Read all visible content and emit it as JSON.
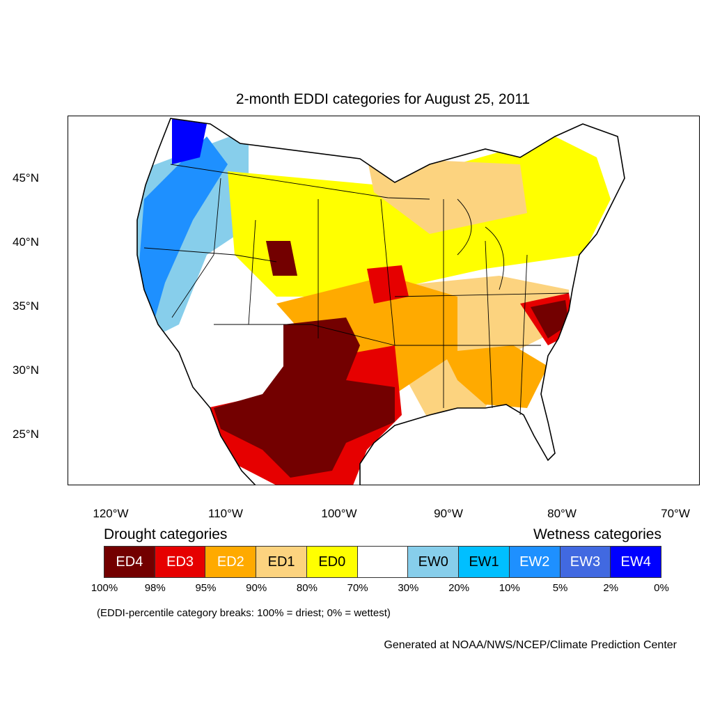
{
  "title": "2-month EDDI categories for August 25, 2011",
  "axes": {
    "lat_labels": [
      "45°N",
      "40°N",
      "35°N",
      "30°N",
      "25°N"
    ],
    "lon_labels": [
      "120°W",
      "110°W",
      "100°W",
      "90°W",
      "80°W",
      "70°W"
    ]
  },
  "legend": {
    "drought_heading": "Drought categories",
    "wetness_heading": "Wetness categories",
    "categories": [
      {
        "label": "ED4",
        "color": "#730000",
        "text_color": "#ffffff"
      },
      {
        "label": "ED3",
        "color": "#e60000",
        "text_color": "#ffffff"
      },
      {
        "label": "ED2",
        "color": "#ffaa00",
        "text_color": "#ffffff"
      },
      {
        "label": "ED1",
        "color": "#fcd37f",
        "text_color": "#000000"
      },
      {
        "label": "ED0",
        "color": "#ffff00",
        "text_color": "#000000"
      },
      {
        "label": "",
        "color": "#ffffff",
        "text_color": "#000000"
      },
      {
        "label": "EW0",
        "color": "#87ceeb",
        "text_color": "#000000"
      },
      {
        "label": "EW1",
        "color": "#00bfff",
        "text_color": "#000000"
      },
      {
        "label": "EW2",
        "color": "#1e90ff",
        "text_color": "#ffffff"
      },
      {
        "label": "EW3",
        "color": "#4169e1",
        "text_color": "#ffffff"
      },
      {
        "label": "EW4",
        "color": "#0000ff",
        "text_color": "#ffffff"
      }
    ],
    "breaks": [
      "100%",
      "98%",
      "95%",
      "90%",
      "80%",
      "70%",
      "30%",
      "20%",
      "10%",
      "5%",
      "2%",
      "0%"
    ]
  },
  "note": "(EDDI-percentile category breaks: 100% = driest; 0% = wettest)",
  "credit": "Generated at NOAA/NWS/NCEP/Climate Prediction Center"
}
